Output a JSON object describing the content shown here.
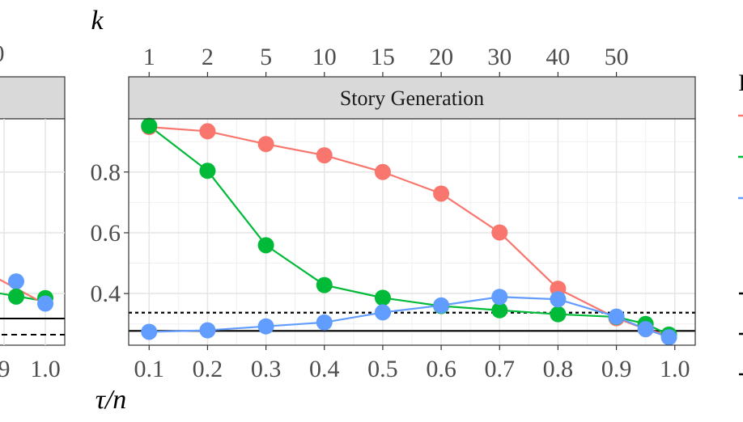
{
  "chart_data": {
    "type": "line",
    "panel_title": "Story Generation",
    "top_axis_label": "k",
    "bottom_axis_label": "τ/n",
    "x_ticks": [
      "0.1",
      "0.2",
      "0.3",
      "0.4",
      "0.5",
      "0.6",
      "0.7",
      "0.8",
      "0.9",
      "1.0"
    ],
    "k_ticks": [
      {
        "label": "1",
        "x": 0.1
      },
      {
        "label": "2",
        "x": 0.2
      },
      {
        "label": "5",
        "x": 0.3
      },
      {
        "label": "10",
        "x": 0.4
      },
      {
        "label": "15",
        "x": 0.5
      },
      {
        "label": "20",
        "x": 0.6
      },
      {
        "label": "30",
        "x": 0.7
      },
      {
        "label": "40",
        "x": 0.8
      },
      {
        "label": "50",
        "x": 0.9
      }
    ],
    "y_ticks": [
      "0.4",
      "0.6",
      "0.8"
    ],
    "xlim": [
      0.065,
      1.035
    ],
    "ylim": [
      0.23,
      0.975
    ],
    "series": [
      {
        "color": "#F8766D",
        "points": [
          [
            0.1,
            0.948
          ],
          [
            0.2,
            0.934
          ],
          [
            0.3,
            0.892
          ],
          [
            0.4,
            0.855
          ],
          [
            0.5,
            0.8
          ],
          [
            0.6,
            0.729
          ],
          [
            0.7,
            0.601
          ],
          [
            0.8,
            0.416
          ],
          [
            0.9,
            0.319
          ],
          [
            0.95,
            0.283
          ],
          [
            0.99,
            0.262
          ]
        ]
      },
      {
        "color": "#00BA38",
        "points": [
          [
            0.1,
            0.952
          ],
          [
            0.2,
            0.804
          ],
          [
            0.3,
            0.559
          ],
          [
            0.4,
            0.428
          ],
          [
            0.5,
            0.386
          ],
          [
            0.6,
            0.359
          ],
          [
            0.7,
            0.345
          ],
          [
            0.8,
            0.332
          ],
          [
            0.9,
            0.323
          ],
          [
            0.95,
            0.3
          ],
          [
            0.99,
            0.265
          ]
        ]
      },
      {
        "color": "#619CFF",
        "points": [
          [
            0.1,
            0.274
          ],
          [
            0.2,
            0.279
          ],
          [
            0.3,
            0.292
          ],
          [
            0.4,
            0.305
          ],
          [
            0.5,
            0.338
          ],
          [
            0.6,
            0.361
          ],
          [
            0.7,
            0.389
          ],
          [
            0.8,
            0.381
          ],
          [
            0.9,
            0.324
          ],
          [
            0.95,
            0.283
          ],
          [
            0.99,
            0.256
          ]
        ]
      }
    ],
    "reference_lines": [
      {
        "style": "solid",
        "y": 0.277
      },
      {
        "style": "dotted",
        "y": 0.337
      }
    ],
    "left_panel_partial": {
      "x_ticks": [
        "9",
        "1.0"
      ],
      "top_tick": "0",
      "points": [
        {
          "color": "#619CFF",
          "x": 0.94,
          "y": 0.44
        },
        {
          "color": "#00BA38",
          "x": 0.94,
          "y": 0.39
        },
        {
          "color": "#00BA38",
          "x": 0.99,
          "y": 0.385
        },
        {
          "color": "#619CFF",
          "x": 0.99,
          "y": 0.367
        }
      ]
    },
    "legend_partial": {
      "title_fragment": "I",
      "colors": [
        "#F8766D",
        "#00BA38",
        "#619CFF"
      ]
    }
  }
}
